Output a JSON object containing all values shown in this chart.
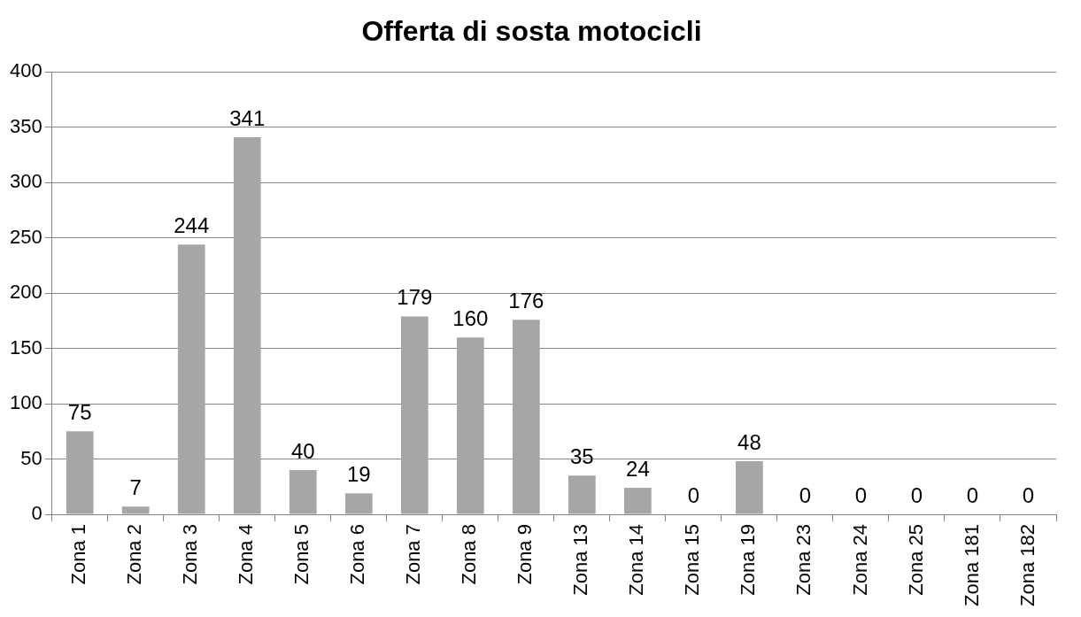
{
  "chart_data": {
    "type": "bar",
    "title": "Offerta di sosta motocicli",
    "categories": [
      "Zona 1",
      "Zona 2",
      "Zona 3",
      "Zona 4",
      "Zona 5",
      "Zona 6",
      "Zona 7",
      "Zona 8",
      "Zona 9",
      "Zona 13",
      "Zona 14",
      "Zona 15",
      "Zona 19",
      "Zona 23",
      "Zona 24",
      "Zona 25",
      "Zona 181",
      "Zona 182"
    ],
    "values": [
      75,
      7,
      244,
      341,
      40,
      19,
      179,
      160,
      176,
      35,
      24,
      0,
      48,
      0,
      0,
      0,
      0,
      0
    ],
    "color": "#a6a6a6",
    "ylim": [
      0,
      400
    ],
    "yticks": [
      0,
      50,
      100,
      150,
      200,
      250,
      300,
      350,
      400
    ],
    "grid": "y",
    "data_labels": true,
    "legend": false
  }
}
